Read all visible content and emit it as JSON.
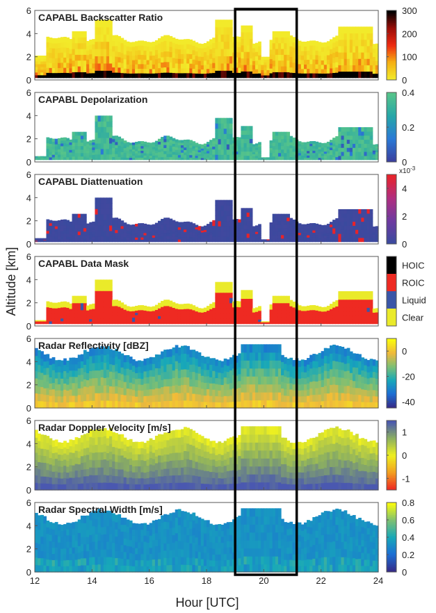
{
  "figure": {
    "ylabel": "Altitude [km]",
    "xlabel": "Hour [UTC]",
    "x_ticks": [
      "12",
      "14",
      "16",
      "18",
      "20",
      "22",
      "24"
    ],
    "y_ticks": [
      "0",
      "2",
      "4",
      "6"
    ]
  },
  "chart_data": [
    {
      "type": "heatmap",
      "title": "CAPABL Backscatter Ratio",
      "xlim": [
        12,
        24
      ],
      "ylim": [
        0,
        6
      ],
      "colorbar": {
        "ticks": [
          "0",
          "100",
          "200",
          "300"
        ],
        "range": [
          0,
          300
        ],
        "colors": [
          "#f2ea2a",
          "#f5b013",
          "#ee2a11",
          "#9b0e08",
          "#000000"
        ]
      }
    },
    {
      "type": "heatmap",
      "title": "CAPABL Depolarization",
      "xlim": [
        12,
        24
      ],
      "ylim": [
        0,
        6
      ],
      "colorbar": {
        "ticks": [
          "0",
          "0.2",
          "0.4"
        ],
        "range": [
          0,
          0.4
        ],
        "colors": [
          "#3b3f9e",
          "#2a7ad6",
          "#26a6a8",
          "#56c48a"
        ]
      }
    },
    {
      "type": "heatmap",
      "title": "CAPABL Diattenuation",
      "xlim": [
        12,
        24
      ],
      "ylim": [
        0,
        6
      ],
      "colorbar": {
        "ticks": [
          "0",
          "2",
          "4"
        ],
        "range": [
          0,
          5
        ],
        "multiplier": "x10",
        "exponent": "-3",
        "colors": [
          "#3a4a9e",
          "#6e3aa0",
          "#b02e80",
          "#e8232a"
        ]
      }
    },
    {
      "type": "heatmap",
      "title": "CAPABL Data Mask",
      "xlim": [
        12,
        24
      ],
      "ylim": [
        0,
        6
      ],
      "categories": [
        "HOIC",
        "ROIC",
        "Liquid",
        "Clear"
      ],
      "category_colors": [
        "#000000",
        "#ee2a22",
        "#3a56a8",
        "#eaea2a"
      ]
    },
    {
      "type": "heatmap",
      "title": "Radar Reflectivity [dBZ]",
      "xlim": [
        12,
        24
      ],
      "ylim": [
        0,
        6
      ],
      "colorbar": {
        "ticks": [
          "-40",
          "-20",
          "0"
        ],
        "range": [
          -45,
          10
        ],
        "colors": [
          "#352a87",
          "#1c6ed4",
          "#17a8b9",
          "#7dbf73",
          "#f0b93b",
          "#f9fb0e"
        ]
      }
    },
    {
      "type": "heatmap",
      "title": "Radar Doppler Velocity [m/s]",
      "xlim": [
        12,
        24
      ],
      "ylim": [
        0,
        6
      ],
      "colorbar": {
        "ticks": [
          "-1",
          "0",
          "1"
        ],
        "range": [
          -1.5,
          1.5
        ],
        "colors": [
          "#ee2a22",
          "#f2a020",
          "#eef020",
          "#8cb060",
          "#4a58b0"
        ]
      }
    },
    {
      "type": "heatmap",
      "title": "Radar Spectral Width [m/s]",
      "xlim": [
        12,
        24
      ],
      "ylim": [
        0,
        6
      ],
      "colorbar": {
        "ticks": [
          "0",
          "0.2",
          "0.4",
          "0.6",
          "0.8"
        ],
        "range": [
          0,
          0.8
        ],
        "colors": [
          "#352a87",
          "#1c6ed4",
          "#17a8b9",
          "#7dbf73",
          "#f9fb0e"
        ]
      }
    }
  ],
  "highlight_box": {
    "x_start": 19.0,
    "x_end": 21.15
  }
}
